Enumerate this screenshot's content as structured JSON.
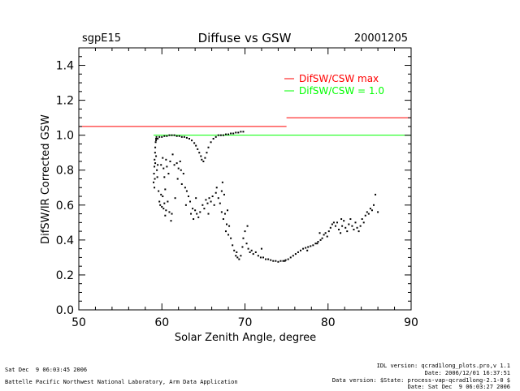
{
  "header": {
    "site": "sgpE15",
    "title": "Diffuse vs GSW",
    "date": "20001205"
  },
  "footer": {
    "timestamp": "Sat Dec  9 06:03:45 2006",
    "organization": "Battelle Pacific Northwest National Laboratory, Arm Data Application",
    "idl_version": "IDL version: qcrad1long_plots.pro,v 1.1",
    "file_date": "Date: 2006/12/01 16:37:51",
    "data_version": "Data version: $State: process-vap-qcrad1long-2.1-0 $",
    "run_date": "Date: Sat Dec  9 06:03:27 2006"
  },
  "colors": {
    "axes": "#000000",
    "max_line": "#ff0000",
    "unity_line": "#00ff00",
    "points": "#000000",
    "background": "#ffffff"
  },
  "chart_data": {
    "type": "scatter",
    "title": "Diffuse vs GSW",
    "xlabel": "Solar Zenith Angle, degree",
    "ylabel": "DifSW/IR Corrected GSW",
    "xlim": [
      50,
      90
    ],
    "ylim": [
      0.0,
      1.5
    ],
    "xticks": [
      50,
      60,
      70,
      80,
      90
    ],
    "yticks": [
      0.0,
      0.2,
      0.4,
      0.6,
      0.8,
      1.0,
      1.2,
      1.4
    ],
    "grid": false,
    "legend": {
      "placement": "top-right",
      "entries": [
        {
          "label": "DifSW/CSW max",
          "color": "#ff0000"
        },
        {
          "label": "DifSW/CSW = 1.0",
          "color": "#00ff00"
        }
      ]
    },
    "reference_lines": [
      {
        "name": "DifSW/CSW max",
        "color": "#ff0000",
        "segments": [
          {
            "x": [
              50,
              75
            ],
            "y": 1.05
          },
          {
            "x": [
              75,
              90
            ],
            "y": 1.1
          }
        ]
      },
      {
        "name": "DifSW/CSW = 1.0",
        "color": "#00ff00",
        "segments": [
          {
            "x": [
              59,
              90
            ],
            "y": 1.0
          }
        ]
      }
    ],
    "series": [
      {
        "points": [
          [
            59.0,
            0.73
          ],
          [
            59.05,
            0.78
          ],
          [
            59.1,
            0.82
          ],
          [
            59.12,
            0.86
          ],
          [
            59.15,
            0.75
          ],
          [
            59.18,
            0.9
          ],
          [
            59.2,
            0.93
          ],
          [
            59.25,
            0.96
          ],
          [
            59.3,
            0.98
          ],
          [
            59.35,
            0.99
          ],
          [
            59.1,
            0.7
          ],
          [
            59.2,
            0.84
          ],
          [
            59.3,
            0.88
          ],
          [
            59.4,
            0.8
          ],
          [
            59.5,
            0.83
          ],
          [
            59.45,
            0.76
          ],
          [
            59.6,
            0.68
          ],
          [
            59.7,
            0.62
          ],
          [
            59.8,
            0.6
          ],
          [
            59.9,
            0.66
          ],
          [
            60.0,
            0.59
          ],
          [
            60.1,
            0.65
          ],
          [
            60.2,
            0.58
          ],
          [
            60.3,
            0.61
          ],
          [
            60.4,
            0.54
          ],
          [
            60.5,
            0.57
          ],
          [
            60.7,
            0.62
          ],
          [
            60.9,
            0.56
          ],
          [
            61.1,
            0.51
          ],
          [
            61.2,
            0.55
          ],
          [
            59.9,
            0.83
          ],
          [
            60.1,
            0.87
          ],
          [
            60.2,
            0.81
          ],
          [
            60.5,
            0.86
          ],
          [
            60.6,
            0.82
          ],
          [
            60.3,
            0.76
          ],
          [
            60.8,
            0.78
          ],
          [
            61.0,
            0.85
          ],
          [
            61.3,
            0.89
          ],
          [
            61.5,
            0.83
          ],
          [
            61.8,
            0.84
          ],
          [
            62.0,
            0.81
          ],
          [
            62.2,
            0.85
          ],
          [
            62.3,
            0.8
          ],
          [
            61.9,
            0.75
          ],
          [
            62.4,
            0.72
          ],
          [
            62.6,
            0.78
          ],
          [
            62.8,
            0.7
          ],
          [
            63.0,
            0.68
          ],
          [
            63.2,
            0.65
          ],
          [
            59.3,
            0.97
          ],
          [
            59.5,
            0.98
          ],
          [
            59.7,
            0.99
          ],
          [
            60.0,
            0.99
          ],
          [
            60.3,
            0.995
          ],
          [
            60.6,
            0.995
          ],
          [
            60.9,
            1.0
          ],
          [
            61.2,
            1.0
          ],
          [
            61.5,
            1.0
          ],
          [
            61.8,
            0.995
          ],
          [
            62.1,
            0.995
          ],
          [
            62.4,
            0.99
          ],
          [
            62.7,
            0.99
          ],
          [
            63.0,
            0.985
          ],
          [
            63.3,
            0.98
          ],
          [
            63.6,
            0.97
          ],
          [
            63.9,
            0.955
          ],
          [
            64.1,
            0.94
          ],
          [
            64.3,
            0.92
          ],
          [
            64.5,
            0.9
          ],
          [
            64.7,
            0.88
          ],
          [
            64.8,
            0.86
          ],
          [
            65.0,
            0.85
          ],
          [
            65.2,
            0.87
          ],
          [
            65.4,
            0.9
          ],
          [
            65.6,
            0.93
          ],
          [
            65.9,
            0.96
          ],
          [
            66.2,
            0.98
          ],
          [
            66.5,
            0.99
          ],
          [
            66.8,
            1.0
          ],
          [
            67.1,
            1.0
          ],
          [
            67.4,
            1.0
          ],
          [
            67.7,
            1.005
          ],
          [
            68.0,
            1.005
          ],
          [
            68.3,
            1.01
          ],
          [
            68.6,
            1.01
          ],
          [
            68.9,
            1.015
          ],
          [
            69.2,
            1.015
          ],
          [
            69.5,
            1.02
          ],
          [
            69.8,
            1.02
          ],
          [
            63.4,
            0.62
          ],
          [
            63.5,
            0.55
          ],
          [
            63.7,
            0.58
          ],
          [
            63.8,
            0.52
          ],
          [
            64.0,
            0.57
          ],
          [
            64.2,
            0.55
          ],
          [
            64.4,
            0.53
          ],
          [
            64.6,
            0.56
          ],
          [
            64.9,
            0.6
          ],
          [
            65.1,
            0.58
          ],
          [
            65.3,
            0.63
          ],
          [
            65.5,
            0.61
          ],
          [
            65.7,
            0.64
          ],
          [
            65.9,
            0.62
          ],
          [
            66.1,
            0.65
          ],
          [
            66.3,
            0.6
          ],
          [
            66.5,
            0.67
          ],
          [
            66.8,
            0.64
          ],
          [
            67.0,
            0.61
          ],
          [
            67.2,
            0.56
          ],
          [
            67.4,
            0.52
          ],
          [
            67.6,
            0.55
          ],
          [
            67.8,
            0.49
          ],
          [
            67.2,
            0.68
          ],
          [
            67.5,
            0.66
          ],
          [
            67.9,
            0.57
          ],
          [
            68.1,
            0.48
          ],
          [
            68.3,
            0.41
          ],
          [
            68.5,
            0.37
          ],
          [
            68.7,
            0.34
          ],
          [
            68.9,
            0.31
          ],
          [
            69.1,
            0.3
          ],
          [
            69.3,
            0.29
          ],
          [
            69.5,
            0.31
          ],
          [
            69.7,
            0.36
          ],
          [
            69.8,
            0.41
          ],
          [
            70.0,
            0.45
          ],
          [
            70.2,
            0.38
          ],
          [
            70.4,
            0.35
          ],
          [
            70.6,
            0.33
          ],
          [
            70.8,
            0.34
          ],
          [
            71.0,
            0.32
          ],
          [
            71.3,
            0.33
          ],
          [
            71.6,
            0.31
          ],
          [
            71.9,
            0.3
          ],
          [
            72.2,
            0.3
          ],
          [
            72.5,
            0.29
          ],
          [
            72.8,
            0.29
          ],
          [
            73.1,
            0.285
          ],
          [
            73.4,
            0.28
          ],
          [
            73.7,
            0.28
          ],
          [
            74.0,
            0.275
          ],
          [
            74.3,
            0.28
          ],
          [
            74.6,
            0.28
          ],
          [
            74.9,
            0.285
          ],
          [
            75.2,
            0.29
          ],
          [
            75.5,
            0.3
          ],
          [
            75.8,
            0.31
          ],
          [
            76.1,
            0.32
          ],
          [
            76.4,
            0.33
          ],
          [
            76.7,
            0.34
          ],
          [
            77.0,
            0.35
          ],
          [
            77.3,
            0.355
          ],
          [
            77.6,
            0.36
          ],
          [
            77.9,
            0.365
          ],
          [
            78.2,
            0.37
          ],
          [
            78.5,
            0.38
          ],
          [
            78.8,
            0.39
          ],
          [
            79.1,
            0.4
          ],
          [
            79.3,
            0.41
          ],
          [
            79.5,
            0.43
          ],
          [
            79.7,
            0.44
          ],
          [
            79.9,
            0.42
          ],
          [
            80.1,
            0.45
          ],
          [
            80.3,
            0.47
          ],
          [
            80.5,
            0.49
          ],
          [
            80.7,
            0.5
          ],
          [
            80.9,
            0.48
          ],
          [
            81.1,
            0.5
          ],
          [
            81.3,
            0.46
          ],
          [
            81.5,
            0.44
          ],
          [
            81.7,
            0.48
          ],
          [
            81.9,
            0.51
          ],
          [
            82.1,
            0.47
          ],
          [
            82.3,
            0.45
          ],
          [
            82.5,
            0.49
          ],
          [
            82.7,
            0.52
          ],
          [
            82.9,
            0.48
          ],
          [
            83.1,
            0.46
          ],
          [
            83.3,
            0.5
          ],
          [
            83.5,
            0.47
          ],
          [
            83.7,
            0.45
          ],
          [
            83.9,
            0.48
          ],
          [
            84.1,
            0.52
          ],
          [
            84.3,
            0.5
          ],
          [
            84.5,
            0.54
          ],
          [
            84.7,
            0.56
          ],
          [
            84.9,
            0.55
          ],
          [
            85.1,
            0.58
          ],
          [
            85.3,
            0.57
          ],
          [
            85.5,
            0.6
          ],
          [
            85.7,
            0.66
          ],
          [
            67.7,
            0.45
          ],
          [
            68.0,
            0.43
          ],
          [
            70.3,
            0.48
          ],
          [
            72.0,
            0.35
          ],
          [
            79.0,
            0.44
          ],
          [
            81.6,
            0.52
          ],
          [
            86.0,
            0.56
          ],
          [
            60.4,
            0.69
          ],
          [
            61.6,
            0.64
          ],
          [
            62.9,
            0.6
          ],
          [
            64.1,
            0.64
          ],
          [
            65.6,
            0.55
          ],
          [
            66.6,
            0.7
          ],
          [
            67.3,
            0.73
          ],
          [
            69.0,
            0.33
          ],
          [
            74.8,
            0.28
          ],
          [
            77.5,
            0.34
          ],
          [
            78.7,
            0.38
          ]
        ]
      }
    ]
  }
}
